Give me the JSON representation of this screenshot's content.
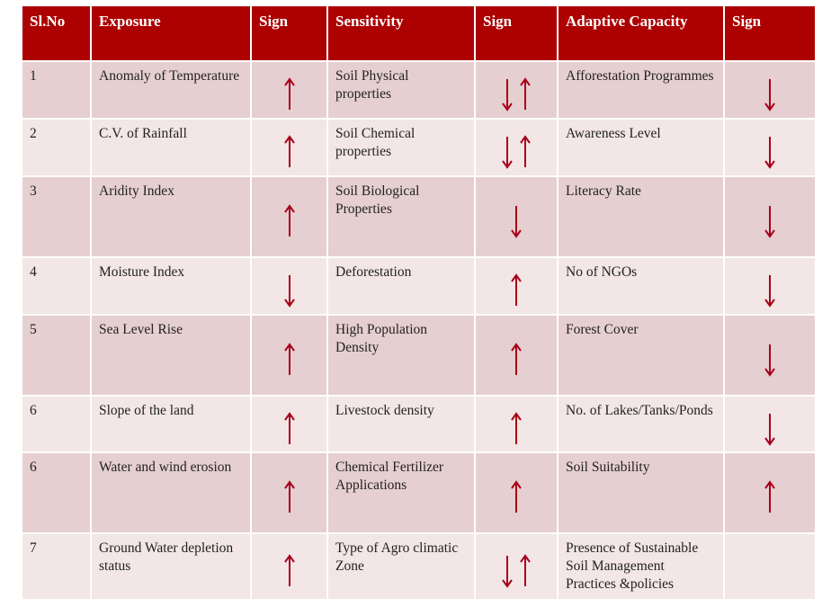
{
  "table": {
    "headers": [
      "Sl.No",
      "Exposure",
      "Sign",
      "Sensitivity",
      "Sign",
      "Adaptive Capacity",
      "Sign"
    ],
    "rows": [
      {
        "no": "1",
        "exposure": "Anomaly of Temperature",
        "exposure_sign": "up",
        "sensitivity": "Soil Physical properties",
        "sensitivity_sign": "down-up",
        "adaptive": "Afforestation Programmes",
        "adaptive_sign": "down"
      },
      {
        "no": "2",
        "exposure": "C.V. of Rainfall",
        "exposure_sign": "up",
        "sensitivity": "Soil Chemical properties",
        "sensitivity_sign": "down-up",
        "adaptive": "Awareness Level",
        "adaptive_sign": "down"
      },
      {
        "no": "3",
        "exposure": "Aridity Index",
        "exposure_sign": "up",
        "sensitivity": "Soil Biological Properties",
        "sensitivity_sign": "down",
        "adaptive": "Literacy Rate",
        "adaptive_sign": "down"
      },
      {
        "no": "4",
        "exposure": "Moisture Index",
        "exposure_sign": "down",
        "sensitivity": "Deforestation",
        "sensitivity_sign": "up",
        "adaptive": "No of  NGOs",
        "adaptive_sign": "down"
      },
      {
        "no": "5",
        "exposure": "Sea  Level Rise",
        "exposure_sign": "up",
        "sensitivity": "High Population Density",
        "sensitivity_sign": "up",
        "adaptive": "Forest Cover",
        "adaptive_sign": "down"
      },
      {
        "no": "6",
        "exposure": "Slope of the land",
        "exposure_sign": "up",
        "sensitivity": "Livestock density",
        "sensitivity_sign": "up",
        "adaptive": "No. of Lakes/Tanks/Ponds",
        "adaptive_sign": "down"
      },
      {
        "no": "6",
        "exposure": "Water and wind erosion",
        "exposure_sign": "up",
        "sensitivity": "Chemical Fertilizer Applications",
        "sensitivity_sign": "up",
        "adaptive": "Soil Suitability",
        "adaptive_sign": "up"
      },
      {
        "no": "7",
        "exposure": "Ground Water depletion status",
        "exposure_sign": "up",
        "sensitivity": "Type of Agro climatic Zone",
        "sensitivity_sign": "down-up",
        "adaptive": "Presence of Sustainable Soil Management Practices &policies",
        "adaptive_sign": ""
      }
    ]
  },
  "colors": {
    "header": "#ad0000",
    "row_dark": "#e6cfd0",
    "row_light": "#f2e6e6",
    "arrow": "#a8001a"
  }
}
